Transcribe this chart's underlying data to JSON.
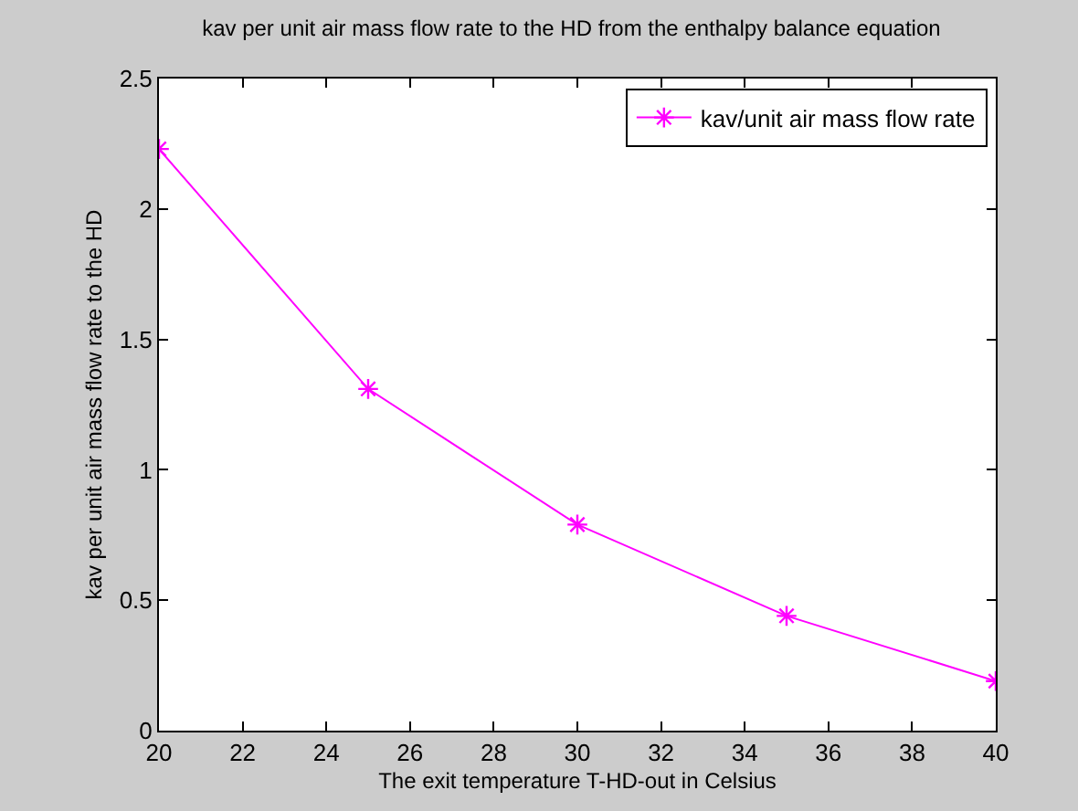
{
  "chart_data": {
    "type": "line",
    "title": "kav per unit air mass flow rate to the HD from the enthalpy balance equation",
    "xlabel": "The exit temperature T-HD-out in Celsius",
    "ylabel": "kav per unit air mass flow rate to the HD",
    "x": [
      20,
      25,
      30,
      35,
      40
    ],
    "series": [
      {
        "name": "kav/unit air mass flow rate",
        "color": "#ff00ff",
        "values": [
          2.23,
          1.31,
          0.79,
          0.44,
          0.19
        ]
      }
    ],
    "xlim": [
      20,
      40
    ],
    "xticks": [
      20,
      22,
      24,
      26,
      28,
      30,
      32,
      34,
      36,
      38,
      40
    ],
    "ylim": [
      0,
      2.5
    ],
    "yticks": [
      0,
      0.5,
      1,
      1.5,
      2,
      2.5
    ],
    "legend": "top right",
    "marker": "cross",
    "line_style": "solid"
  }
}
